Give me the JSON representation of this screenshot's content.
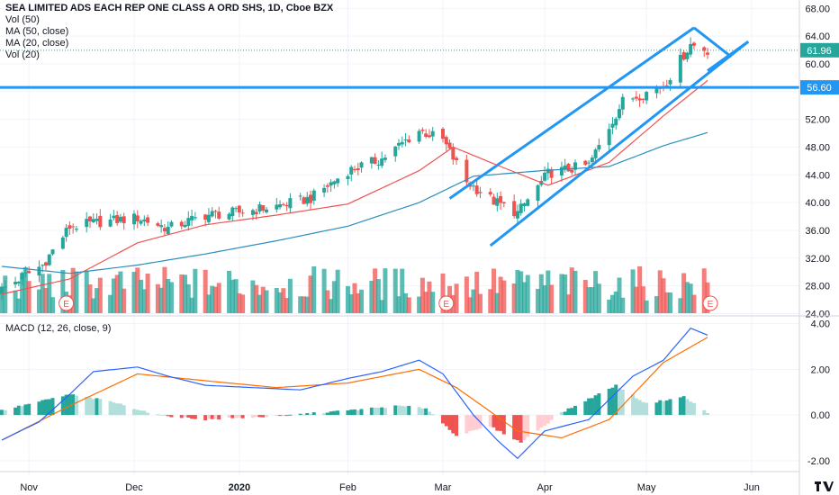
{
  "header": {
    "symbol_title": "SEA LIMITED ADS EACH REP ONE CLASS A ORD SHS, 1D, Cboe BZX",
    "indicator_1": "Vol (50)",
    "indicator_2": "MA (50, close)",
    "indicator_3": "MA (20, close)",
    "indicator_4": "Vol (20)",
    "macd_label": "MACD (12, 26, close, 9)"
  },
  "colors": {
    "up": "#26a69a",
    "down": "#ef5350",
    "ma20": "#ef5350",
    "ma50": "#2a8fbd",
    "drawing": "#2196f3",
    "macd_line": "#2962ff",
    "signal_line": "#ff6d00"
  },
  "chart_data": [
    {
      "type": "candlestick",
      "title": "SEA LIMITED ADS EACH REP ONE CLASS A ORD SHS, 1D, Cboe BZX",
      "x_ticks": [
        "Nov",
        "Dec",
        "2020",
        "Feb",
        "Mar",
        "Apr",
        "May",
        "Jun"
      ],
      "y_ticks": [
        24,
        28,
        32,
        36,
        40,
        44,
        48,
        52,
        56,
        60,
        64,
        68
      ],
      "y_tick_labels": [
        "24.00",
        "28.00",
        "32.00",
        "36.00",
        "40.00",
        "44.00",
        "48.00",
        "52.00",
        "",
        "60.00",
        "64.00",
        "68.00"
      ],
      "ylim": [
        23.8,
        69.2
      ],
      "last_price": 61.96,
      "last_price_label": "61.96",
      "horizontal_level": 56.6,
      "horizontal_level_label": "56.60",
      "earnings_marker": "E",
      "grid": true,
      "ohlc_keypoints_close": [
        [
          "2019-10-24",
          27.5
        ],
        [
          "2019-11-05",
          31.0
        ],
        [
          "2019-11-13",
          36.5
        ],
        [
          "2019-11-22",
          37.2
        ],
        [
          "2019-12-03",
          37.8
        ],
        [
          "2019-12-12",
          36.3
        ],
        [
          "2019-12-23",
          38.2
        ],
        [
          "2020-01-02",
          38.6
        ],
        [
          "2020-01-13",
          39.5
        ],
        [
          "2020-01-23",
          40.6
        ],
        [
          "2020-02-03",
          44.6
        ],
        [
          "2020-02-13",
          46.3
        ],
        [
          "2020-02-24",
          50.4
        ],
        [
          "2020-03-02",
          49.0
        ],
        [
          "2020-03-09",
          43.0
        ],
        [
          "2020-03-17",
          40.2
        ],
        [
          "2020-03-24",
          38.5
        ],
        [
          "2020-04-02",
          44.2
        ],
        [
          "2020-04-14",
          45.4
        ],
        [
          "2020-04-24",
          54.6
        ],
        [
          "2020-05-06",
          56.8
        ],
        [
          "2020-05-14",
          62.8
        ],
        [
          "2020-05-19",
          61.96
        ]
      ],
      "ma20_keypoints": [
        [
          "2019-10-24",
          26.8
        ],
        [
          "2019-11-13",
          29.0
        ],
        [
          "2019-12-03",
          34.2
        ],
        [
          "2019-12-23",
          36.8
        ],
        [
          "2020-01-13",
          38.2
        ],
        [
          "2020-02-03",
          39.8
        ],
        [
          "2020-02-24",
          44.6
        ],
        [
          "2020-03-05",
          48.0
        ],
        [
          "2020-03-19",
          45.2
        ],
        [
          "2020-04-02",
          42.5
        ],
        [
          "2020-04-20",
          45.8
        ],
        [
          "2020-05-06",
          52.5
        ],
        [
          "2020-05-19",
          57.6
        ]
      ],
      "ma50_keypoints": [
        [
          "2019-10-24",
          30.8
        ],
        [
          "2019-11-13",
          29.8
        ],
        [
          "2019-12-03",
          31.0
        ],
        [
          "2019-12-23",
          32.6
        ],
        [
          "2020-01-13",
          34.5
        ],
        [
          "2020-02-03",
          36.6
        ],
        [
          "2020-02-24",
          40.0
        ],
        [
          "2020-03-11",
          43.8
        ],
        [
          "2020-03-31",
          44.6
        ],
        [
          "2020-04-20",
          45.2
        ],
        [
          "2020-05-06",
          48.2
        ],
        [
          "2020-05-19",
          50.1
        ]
      ],
      "volume_note": "Vol bars colored by candle direction"
    },
    {
      "type": "line",
      "title": "MACD (12, 26, close, 9)",
      "y_ticks": [
        -2,
        0,
        2,
        4
      ],
      "y_tick_labels": [
        "-2.00",
        "0.00",
        "2.00",
        "4.00"
      ],
      "ylim": [
        -2.4,
        4.3
      ],
      "series": [
        {
          "role": "macd",
          "keypoints": [
            [
              "2019-10-24",
              -1.1
            ],
            [
              "2019-11-04",
              -0.3
            ],
            [
              "2019-11-13",
              0.9
            ],
            [
              "2019-11-20",
              1.9
            ],
            [
              "2019-12-03",
              2.1
            ],
            [
              "2019-12-12",
              1.7
            ],
            [
              "2019-12-23",
              1.3
            ],
            [
              "2020-01-06",
              1.2
            ],
            [
              "2020-01-20",
              1.1
            ],
            [
              "2020-02-03",
              1.6
            ],
            [
              "2020-02-13",
              1.9
            ],
            [
              "2020-02-24",
              2.4
            ],
            [
              "2020-03-02",
              1.8
            ],
            [
              "2020-03-11",
              0.0
            ],
            [
              "2020-03-18",
              -1.1
            ],
            [
              "2020-03-24",
              -1.9
            ],
            [
              "2020-04-01",
              -0.7
            ],
            [
              "2020-04-14",
              -0.2
            ],
            [
              "2020-04-27",
              1.7
            ],
            [
              "2020-05-06",
              2.4
            ],
            [
              "2020-05-14",
              3.8
            ],
            [
              "2020-05-19",
              3.5
            ]
          ]
        },
        {
          "role": "signal",
          "keypoints": [
            [
              "2019-10-24",
              -1.1
            ],
            [
              "2019-11-13",
              0.4
            ],
            [
              "2019-12-03",
              1.8
            ],
            [
              "2019-12-23",
              1.5
            ],
            [
              "2020-01-13",
              1.2
            ],
            [
              "2020-02-03",
              1.4
            ],
            [
              "2020-02-24",
              2.0
            ],
            [
              "2020-03-06",
              1.2
            ],
            [
              "2020-03-24",
              -0.7
            ],
            [
              "2020-04-06",
              -1.0
            ],
            [
              "2020-04-20",
              -0.2
            ],
            [
              "2020-05-06",
              2.3
            ],
            [
              "2020-05-19",
              3.4
            ]
          ]
        }
      ],
      "histogram_keypoints": [
        [
          "2019-10-24",
          0.2
        ],
        [
          "2019-11-13",
          0.9
        ],
        [
          "2019-11-25",
          0.6
        ],
        [
          "2019-12-09",
          0.0
        ],
        [
          "2019-12-23",
          -0.2
        ],
        [
          "2020-01-13",
          -0.05
        ],
        [
          "2020-02-03",
          0.2
        ],
        [
          "2020-02-18",
          0.4
        ],
        [
          "2020-02-26",
          0.3
        ],
        [
          "2020-03-06",
          -0.9
        ],
        [
          "2020-03-16",
          -0.5
        ],
        [
          "2020-03-25",
          -1.2
        ],
        [
          "2020-04-06",
          0.1
        ],
        [
          "2020-04-22",
          1.3
        ],
        [
          "2020-05-01",
          0.5
        ],
        [
          "2020-05-12",
          0.8
        ],
        [
          "2020-05-19",
          0.1
        ]
      ]
    }
  ]
}
